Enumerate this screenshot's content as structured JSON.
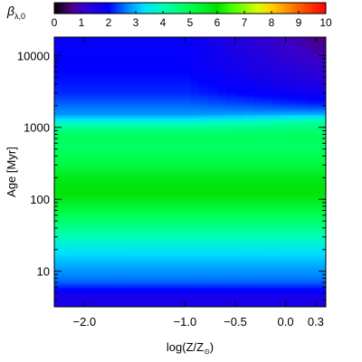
{
  "chart_data": {
    "type": "heatmap",
    "colorbar_label": "β",
    "colorbar_label_sub": "λ,0",
    "colorbar_ticks": [
      0,
      1,
      2,
      3,
      4,
      5,
      6,
      7,
      8,
      9,
      10
    ],
    "colorbar_range": [
      0,
      10
    ],
    "colormap_stops": [
      {
        "v": 0.0,
        "color": "#000000"
      },
      {
        "v": 0.6,
        "color": "#4a007a"
      },
      {
        "v": 1.0,
        "color": "#3a00c8"
      },
      {
        "v": 2.0,
        "color": "#0000ff"
      },
      {
        "v": 2.7,
        "color": "#0088ff"
      },
      {
        "v": 3.3,
        "color": "#00e0ff"
      },
      {
        "v": 4.0,
        "color": "#00ffb4"
      },
      {
        "v": 5.0,
        "color": "#00ff50"
      },
      {
        "v": 6.0,
        "color": "#00e000"
      },
      {
        "v": 6.5,
        "color": "#40ff00"
      },
      {
        "v": 7.5,
        "color": "#d8ff00"
      },
      {
        "v": 8.0,
        "color": "#ffd000"
      },
      {
        "v": 9.0,
        "color": "#ff6000"
      },
      {
        "v": 10.0,
        "color": "#ff0000"
      }
    ],
    "x_label": "log(Z/Z",
    "x_label_sub": "⊙",
    "x_label_close": ")",
    "x_range": [
      -2.3,
      0.4
    ],
    "x_ticks": [
      {
        "value": -2.0,
        "label": "−2.0"
      },
      {
        "value": -1.0,
        "label": "−1.0"
      },
      {
        "value": -0.5,
        "label": "−0.5"
      },
      {
        "value": 0.0,
        "label": "0.0"
      },
      {
        "value": 0.3,
        "label": "0.3"
      }
    ],
    "y_label": "Age [Myr]",
    "y_scale": "log",
    "y_range": [
      3.2,
      18000
    ],
    "y_ticks": [
      {
        "value": 10,
        "label": "10"
      },
      {
        "value": 100,
        "label": "100"
      },
      {
        "value": 1000,
        "label": "1000"
      },
      {
        "value": 10000,
        "label": "10000"
      }
    ],
    "y_profile": [
      {
        "age": 3.2,
        "value": 1.6
      },
      {
        "age": 4.5,
        "value": 1.6
      },
      {
        "age": 5.5,
        "value": 2.0
      },
      {
        "age": 7,
        "value": 2.5
      },
      {
        "age": 10,
        "value": 2.8
      },
      {
        "age": 16,
        "value": 3.2
      },
      {
        "age": 25,
        "value": 3.7
      },
      {
        "age": 40,
        "value": 4.4
      },
      {
        "age": 70,
        "value": 5.2
      },
      {
        "age": 120,
        "value": 5.9
      },
      {
        "age": 180,
        "value": 5.8
      },
      {
        "age": 300,
        "value": 5.2
      },
      {
        "age": 500,
        "value": 4.8
      },
      {
        "age": 750,
        "value": 4.9
      },
      {
        "age": 1000,
        "value": 4.3
      },
      {
        "age": 1500,
        "value": 2.8
      },
      {
        "age": 3000,
        "value": 2.2
      },
      {
        "age": 6000,
        "value": 2.0
      },
      {
        "age": 18000,
        "value": 1.9
      }
    ]
  }
}
